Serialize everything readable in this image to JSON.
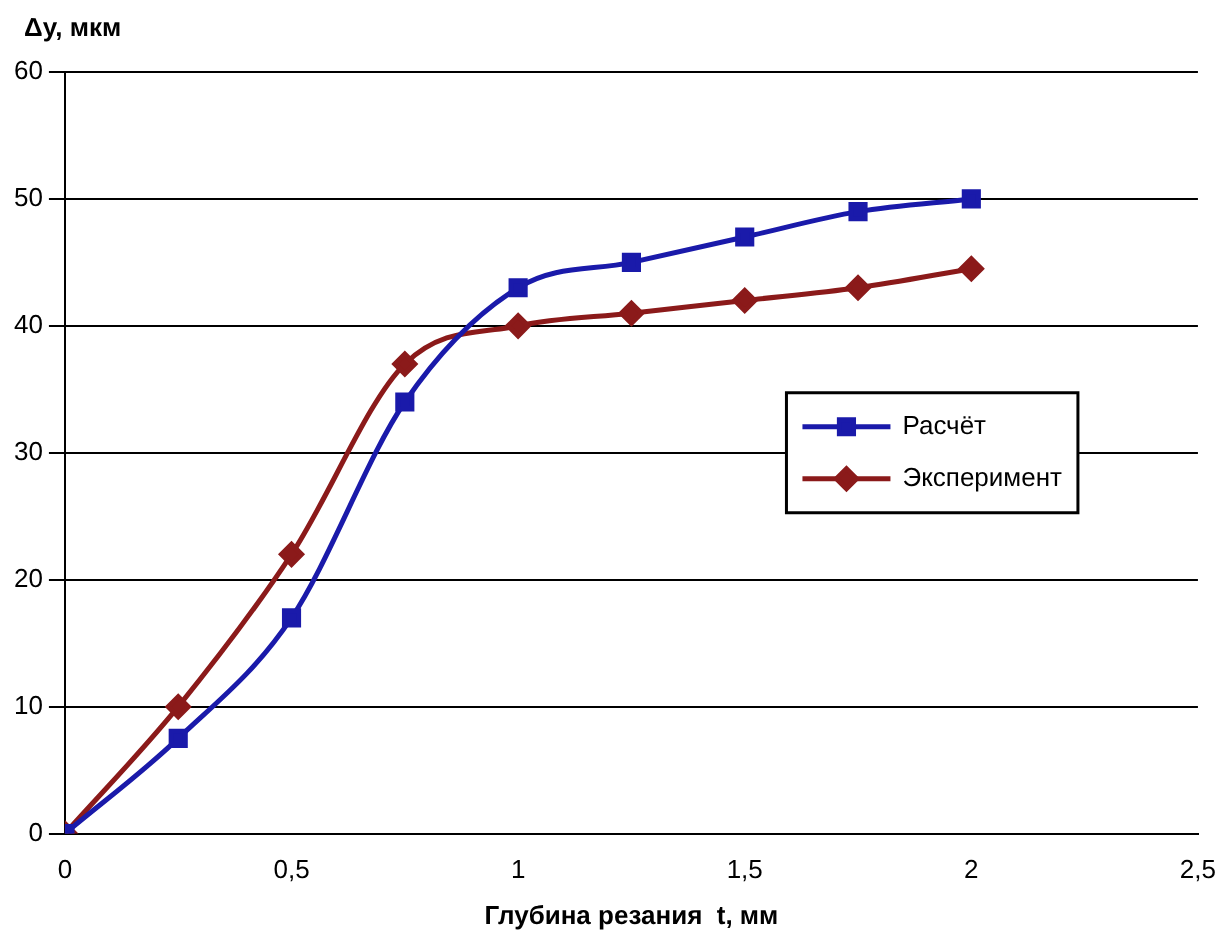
{
  "chart_data": {
    "type": "line",
    "xlabel": "Глубина резания  t, мм",
    "ylabel": "Δy, мкм",
    "x": [
      0,
      0.25,
      0.5,
      0.75,
      1,
      1.25,
      1.5,
      1.75,
      2
    ],
    "series": [
      {
        "name": "Расчёт",
        "color": "#1a1aaa",
        "values": [
          0,
          7.5,
          17,
          34,
          43,
          45,
          47,
          49,
          50
        ],
        "marker": "square"
      },
      {
        "name": "Эксперимент",
        "color": "#8b1a1a",
        "values": [
          0,
          10,
          22,
          37,
          40,
          41,
          42,
          43,
          44.5
        ],
        "marker": "diamond"
      }
    ],
    "xlim": [
      0,
      2.5
    ],
    "xticks": [
      {
        "value": 0,
        "label": "0"
      },
      {
        "value": 0.5,
        "label": "0,5"
      },
      {
        "value": 1,
        "label": "1"
      },
      {
        "value": 1.5,
        "label": "1,5"
      },
      {
        "value": 2,
        "label": "2"
      },
      {
        "value": 2.5,
        "label": "2,5"
      }
    ],
    "ylim": [
      0,
      60
    ],
    "yticks": [
      0,
      10,
      20,
      30,
      40,
      50,
      60
    ],
    "grid": "y",
    "legend": "right",
    "line_style": "solid"
  }
}
